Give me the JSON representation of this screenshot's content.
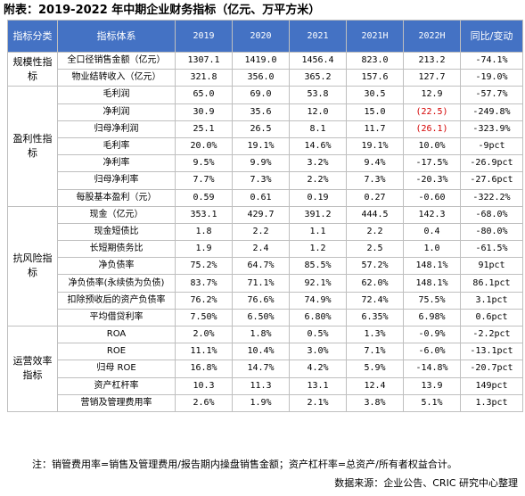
{
  "title": "附表：2019-2022 年中期企业财务指标（亿元、万平方米）",
  "headers": [
    "指标分类",
    "指标体系",
    "2019",
    "2020",
    "2021",
    "2021H",
    "2022H",
    "同比/变动"
  ],
  "categories": [
    "规模性指标",
    "盈利性指标",
    "抗风险指标",
    "运营效率指标"
  ],
  "rows": [
    {
      "ind": "全口径销售金额（亿元）",
      "v": [
        "1307.1",
        "1419.0",
        "1456.4",
        "823.0",
        "213.2",
        "-74.1%"
      ]
    },
    {
      "ind": "物业结转收入（亿元）",
      "v": [
        "321.8",
        "356.0",
        "365.2",
        "157.6",
        "127.7",
        "-19.0%"
      ]
    },
    {
      "ind": "毛利润",
      "v": [
        "65.0",
        "69.0",
        "53.8",
        "30.5",
        "12.9",
        "-57.7%"
      ]
    },
    {
      "ind": "净利润",
      "v": [
        "30.9",
        "35.6",
        "12.0",
        "15.0",
        "(22.5)",
        "-249.8%"
      ]
    },
    {
      "ind": "归母净利润",
      "v": [
        "25.1",
        "26.5",
        "8.1",
        "11.7",
        "(26.1)",
        "-323.9%"
      ]
    },
    {
      "ind": "毛利率",
      "v": [
        "20.0%",
        "19.1%",
        "14.6%",
        "19.1%",
        "10.0%",
        "-9pct"
      ]
    },
    {
      "ind": "净利率",
      "v": [
        "9.5%",
        "9.9%",
        "3.2%",
        "9.4%",
        "-17.5%",
        "-26.9pct"
      ]
    },
    {
      "ind": "归母净利率",
      "v": [
        "7.7%",
        "7.3%",
        "2.2%",
        "7.3%",
        "-20.3%",
        "-27.6pct"
      ]
    },
    {
      "ind": "每股基本盈利（元）",
      "v": [
        "0.59",
        "0.61",
        "0.19",
        "0.27",
        "-0.60",
        "-322.2%"
      ]
    },
    {
      "ind": "现金（亿元）",
      "v": [
        "353.1",
        "429.7",
        "391.2",
        "444.5",
        "142.3",
        "-68.0%"
      ]
    },
    {
      "ind": "现金短债比",
      "v": [
        "1.8",
        "2.2",
        "1.1",
        "2.2",
        "0.4",
        "-80.0%"
      ]
    },
    {
      "ind": "长短期债务比",
      "v": [
        "1.9",
        "2.4",
        "1.2",
        "2.5",
        "1.0",
        "-61.5%"
      ]
    },
    {
      "ind": "净负债率",
      "v": [
        "75.2%",
        "64.7%",
        "85.5%",
        "57.2%",
        "148.1%",
        "91pct"
      ]
    },
    {
      "ind": "净负债率(永续债为负债)",
      "v": [
        "83.7%",
        "71.1%",
        "92.1%",
        "62.0%",
        "148.1%",
        "86.1pct"
      ]
    },
    {
      "ind": "扣除预收后的资产负债率",
      "v": [
        "76.2%",
        "76.6%",
        "74.9%",
        "72.4%",
        "75.5%",
        "3.1pct"
      ]
    },
    {
      "ind": "平均借贷利率",
      "v": [
        "7.50%",
        "6.50%",
        "6.80%",
        "6.35%",
        "6.98%",
        "0.6pct"
      ]
    },
    {
      "ind": "ROA",
      "v": [
        "2.0%",
        "1.8%",
        "0.5%",
        "1.3%",
        "-0.9%",
        "-2.2pct"
      ]
    },
    {
      "ind": "ROE",
      "v": [
        "11.1%",
        "10.4%",
        "3.0%",
        "7.1%",
        "-6.0%",
        "-13.1pct"
      ]
    },
    {
      "ind": "归母 ROE",
      "v": [
        "16.8%",
        "14.7%",
        "4.2%",
        "5.9%",
        "-14.8%",
        "-20.7pct"
      ]
    },
    {
      "ind": "资产杠杆率",
      "v": [
        "10.3",
        "11.3",
        "13.1",
        "12.4",
        "13.9",
        "149pct"
      ]
    },
    {
      "ind": "营销及管理费用率",
      "v": [
        "2.6%",
        "1.9%",
        "2.1%",
        "3.8%",
        "5.1%",
        "1.3pct"
      ]
    }
  ],
  "note": "注：销管费用率=销售及管理费用/报告期内操盘销售金额；资产杠杆率=总资产/所有者权益合计。",
  "source": "数据来源：企业公告、CRIC 研究中心整理",
  "colors": {
    "header_bg": "#4472c4",
    "header_text": "#ffffff",
    "negative_red": "#d40000",
    "border": "#bfbfbf"
  }
}
